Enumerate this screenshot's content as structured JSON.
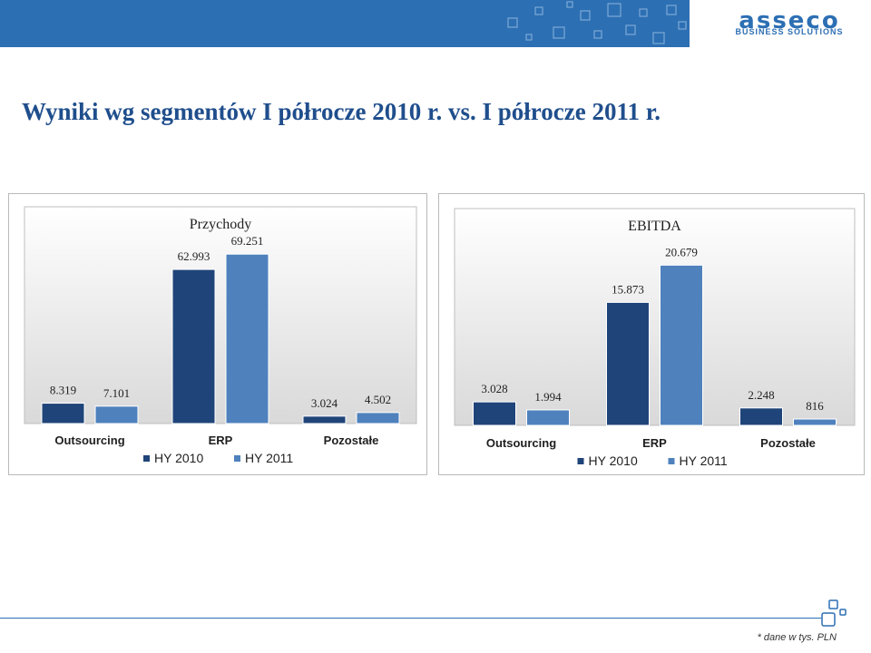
{
  "header": {
    "logo_text": "asseco",
    "logo_subtitle": "BUSINESS SOLUTIONS",
    "colors": {
      "bar": "#2d6fb3",
      "logo": "#2d6fb3"
    }
  },
  "page": {
    "title": "Wyniki wg segmentów I półrocze 2010 r. vs. I półrocze 2011 r.",
    "footnote": "* dane w tys. PLN"
  },
  "chart_data": [
    {
      "type": "bar",
      "title": "Przychody",
      "categories": [
        "Outsourcing",
        "ERP",
        "Pozostałe"
      ],
      "series": [
        {
          "name": "HY 2010",
          "values": [
            8319,
            62993,
            3024
          ],
          "labels": [
            "8.319",
            "62.993",
            "3.024"
          ],
          "color": "#1f4479"
        },
        {
          "name": "HY 2011",
          "values": [
            7101,
            69251,
            4502
          ],
          "labels": [
            "7.101",
            "69.251",
            "4.502"
          ],
          "color": "#4f81bd"
        }
      ],
      "ylim": [
        0,
        76000
      ],
      "grid": false,
      "legend": "bottom"
    },
    {
      "type": "bar",
      "title": "EBITDA",
      "categories": [
        "Outsourcing",
        "ERP",
        "Pozostałe"
      ],
      "series": [
        {
          "name": "HY 2010",
          "values": [
            3028,
            15873,
            2248
          ],
          "labels": [
            "3.028",
            "15.873",
            "2.248"
          ],
          "color": "#1f4479"
        },
        {
          "name": "HY 2011",
          "values": [
            1994,
            20679,
            816
          ],
          "labels": [
            "1.994",
            "20.679",
            "816"
          ],
          "color": "#4f81bd"
        }
      ],
      "ylim": [
        0,
        24000
      ],
      "grid": false,
      "legend": "bottom"
    }
  ]
}
